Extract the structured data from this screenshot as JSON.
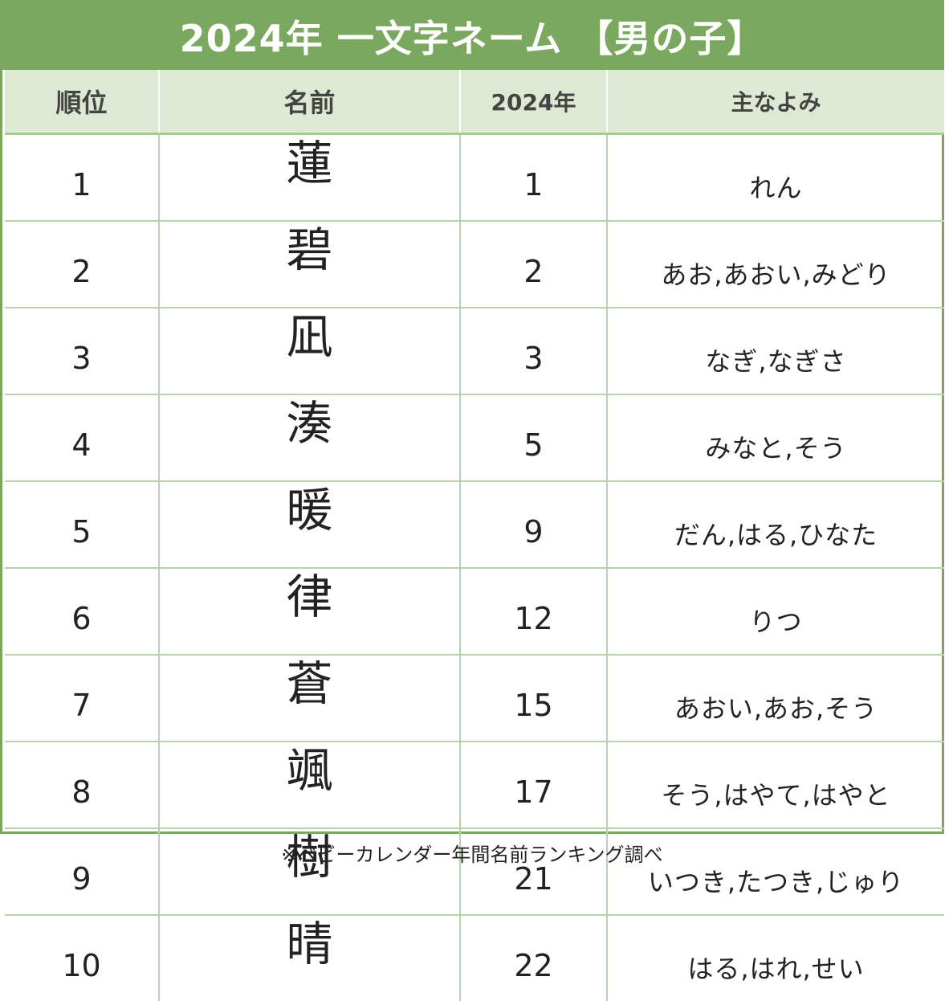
{
  "title": "2024年 一文字ネーム 【男の子】",
  "headers": {
    "rank": "順位",
    "name": "名前",
    "prev": "2024年",
    "reading": "主なよみ"
  },
  "rows": [
    {
      "rank": "1",
      "name": "蓮",
      "prev": "1",
      "reading": "れん"
    },
    {
      "rank": "2",
      "name": "碧",
      "prev": "2",
      "reading": "あお,あおい,みどり"
    },
    {
      "rank": "3",
      "name": "凪",
      "prev": "3",
      "reading": "なぎ,なぎさ"
    },
    {
      "rank": "4",
      "name": "湊",
      "prev": "5",
      "reading": "みなと,そう"
    },
    {
      "rank": "5",
      "name": "暖",
      "prev": "9",
      "reading": "だん,はる,ひなた"
    },
    {
      "rank": "6",
      "name": "律",
      "prev": "12",
      "reading": "りつ"
    },
    {
      "rank": "7",
      "name": "蒼",
      "prev": "15",
      "reading": "あおい,あお,そう"
    },
    {
      "rank": "8",
      "name": "颯",
      "prev": "17",
      "reading": "そう,はやて,はやと"
    },
    {
      "rank": "9",
      "name": "樹",
      "prev": "21",
      "reading": "いつき,たつき,じゅり"
    },
    {
      "rank": "10",
      "name": "晴",
      "prev": "22",
      "reading": "はる,はれ,せい"
    }
  ],
  "note": "※ベビーカレンダー年間名前ランキング調べ",
  "colors": {
    "accent": "#7ba85f",
    "header_bg": "#dde9d3",
    "grid": "#b8d3a6"
  }
}
